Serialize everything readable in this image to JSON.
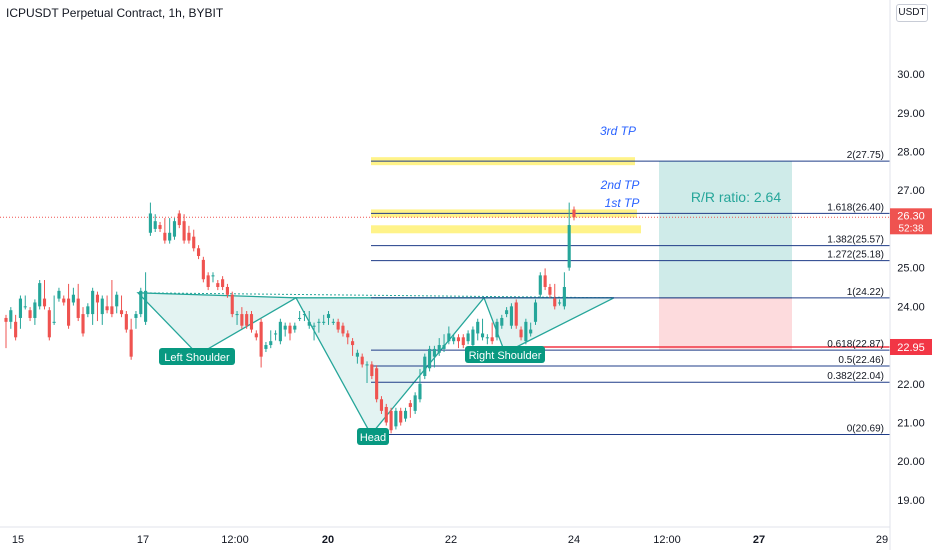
{
  "header": {
    "title": "ICPUSDT Perpetual Contract, 1h, BYBIT",
    "currency": "USDT"
  },
  "chart_data": {
    "type": "candlestick",
    "symbol": "ICPUSDT",
    "timeframe": "1h",
    "exchange": "BYBIT",
    "ylim": [
      18.3,
      31.5
    ],
    "y_ticks": [
      19,
      20,
      21,
      22,
      23,
      24,
      25,
      26,
      27,
      28,
      29,
      30
    ],
    "y_tick_labels": [
      "19.00",
      "20.00",
      "21.00",
      "22.00",
      "23.00",
      "24.00",
      "25.00",
      "26.00",
      "27.00",
      "28.00",
      "29.00",
      "30.00"
    ],
    "xlim": [
      0,
      932
    ],
    "x_ticks": [
      {
        "label": "15",
        "x": 18,
        "bold": false
      },
      {
        "label": "17",
        "x": 143,
        "bold": false
      },
      {
        "label": "12:00",
        "x": 235,
        "bold": false
      },
      {
        "label": "20",
        "x": 328,
        "bold": true
      },
      {
        "label": "22",
        "x": 451,
        "bold": false
      },
      {
        "label": "24",
        "x": 574,
        "bold": false
      },
      {
        "label": "12:00",
        "x": 667,
        "bold": false
      },
      {
        "label": "27",
        "x": 759,
        "bold": true
      },
      {
        "label": "29",
        "x": 882,
        "bold": false
      }
    ],
    "current_price": {
      "value": 26.3,
      "label": "26.30",
      "countdown": "52:38",
      "color": "#ef5350"
    },
    "stop_price": {
      "value": 22.95,
      "label": "22.95",
      "color": "#f23645"
    },
    "fibonacci": [
      {
        "label": "0(20.69)",
        "value": 20.69
      },
      {
        "label": "0.382(22.04)",
        "value": 22.04
      },
      {
        "label": "0.5(22.46)",
        "value": 22.46
      },
      {
        "label": "0.618(22.87)",
        "value": 22.87
      },
      {
        "label": "1(24.22)",
        "value": 24.22
      },
      {
        "label": "1.272(25.18)",
        "value": 25.18
      },
      {
        "label": "1.382(25.57)",
        "value": 25.57
      },
      {
        "label": "1.618(26.40)",
        "value": 26.4
      },
      {
        "label": "2(27.75)",
        "value": 27.75
      }
    ],
    "targets": [
      {
        "label": "1st TP",
        "value": 25.99
      },
      {
        "label": "2nd TP",
        "value": 26.4
      },
      {
        "label": "3rd TP",
        "value": 27.75
      }
    ],
    "position": {
      "entry": 24.22,
      "target": 27.75,
      "stop": 22.87,
      "rr_label": "R/R ratio: 2.64"
    },
    "pattern_labels": {
      "left_shoulder": "Left Shoulder",
      "head": "Head",
      "right_shoulder": "Right Shoulder"
    },
    "neckline_value": 24.22,
    "candles": [
      [
        23.7,
        23.6,
        23.0
      ],
      [
        23.6,
        23.9,
        23.5
      ],
      [
        23.6,
        23.2,
        23.7
      ],
      [
        23.7,
        24.2,
        23.5
      ],
      [
        24.0,
        24.0,
        24.2
      ],
      [
        23.9,
        23.7,
        23.9
      ],
      [
        23.7,
        24.1,
        23.6
      ],
      [
        24.0,
        24.6,
        24.1
      ],
      [
        24.2,
        24.0,
        24.6
      ],
      [
        23.9,
        23.2,
        23.7
      ],
      [
        23.6,
        23.6,
        24.2
      ],
      [
        24.2,
        24.4,
        24.2
      ],
      [
        24.2,
        24.1,
        24.2
      ],
      [
        24.2,
        23.5,
        24.5
      ],
      [
        24.1,
        24.3,
        24.4
      ],
      [
        24.2,
        23.7,
        24.5
      ],
      [
        23.8,
        23.3,
        23.9
      ],
      [
        23.8,
        24.0,
        23.9
      ],
      [
        23.8,
        24.4,
        23.6
      ],
      [
        24.3,
        24.1,
        23.7
      ],
      [
        23.8,
        24.2,
        23.6
      ],
      [
        24.0,
        23.9,
        24.2
      ],
      [
        24.0,
        23.8,
        24.6
      ],
      [
        24.0,
        24.3,
        23.9
      ],
      [
        23.9,
        23.8,
        24.2
      ],
      [
        23.8,
        23.4,
        23.6
      ],
      [
        23.4,
        22.7,
        23.6
      ],
      [
        23.7,
        23.8,
        23.5
      ],
      [
        23.8,
        24.4,
        24.0
      ],
      [
        23.6,
        24.4,
        24.8
      ],
      [
        25.9,
        26.4,
        26.6
      ],
      [
        26.0,
        26.2,
        26.3
      ],
      [
        26.1,
        26.0,
        26.1
      ],
      [
        25.9,
        25.7,
        26.2
      ],
      [
        25.7,
        25.9,
        26.2
      ],
      [
        25.8,
        26.2,
        25.9
      ],
      [
        26.4,
        26.1,
        26.1
      ],
      [
        26.2,
        25.7,
        26.3
      ],
      [
        25.9,
        25.7,
        26.0
      ],
      [
        25.8,
        25.5,
        25.9
      ],
      [
        25.5,
        25.3,
        25.5
      ],
      [
        25.2,
        24.7,
        25.2
      ],
      [
        24.8,
        24.5,
        24.6
      ],
      [
        24.8,
        24.8,
        24.7
      ],
      [
        24.6,
        24.5,
        24.6
      ],
      [
        24.7,
        24.5,
        24.5
      ],
      [
        24.5,
        24.3,
        24.4
      ],
      [
        24.3,
        23.8,
        24.1
      ],
      [
        23.8,
        23.8,
        23.6
      ],
      [
        23.8,
        23.5,
        23.9
      ],
      [
        23.8,
        23.5,
        23.7
      ],
      [
        23.8,
        23.4,
        23.5
      ],
      [
        23.3,
        23.2,
        23.2
      ],
      [
        23.6,
        22.7,
        22.5
      ],
      [
        22.9,
        23.0,
        22.9
      ],
      [
        23.0,
        23.1,
        23.3
      ],
      [
        23.3,
        23.3,
        23.2
      ],
      [
        23.1,
        23.6,
        23.5
      ],
      [
        23.4,
        23.5,
        23.3
      ],
      [
        23.5,
        23.3,
        23.2
      ],
      [
        23.4,
        23.5,
        23.4
      ],
      [
        23.7,
        23.7,
        23.8
      ],
      [
        23.8,
        23.8,
        23.7
      ],
      [
        23.5,
        23.6,
        23.8
      ],
      [
        23.5,
        23.5,
        23.2
      ],
      [
        23.6,
        23.6,
        23.4
      ],
      [
        23.6,
        23.6,
        23.7
      ],
      [
        23.7,
        23.8,
        23.6
      ],
      [
        23.6,
        23.6,
        23.6
      ],
      [
        23.6,
        23.4,
        23.4
      ],
      [
        23.5,
        23.3,
        23.3
      ],
      [
        23.3,
        23.2,
        23.1
      ],
      [
        23.1,
        23.0,
        22.8
      ],
      [
        22.7,
        22.8,
        22.6
      ],
      [
        22.7,
        22.5,
        22.6
      ],
      [
        22.5,
        22.5,
        22.1
      ],
      [
        22.5,
        22.2,
        22.4
      ],
      [
        22.4,
        21.6,
        22.3
      ],
      [
        21.6,
        21.3,
        21.5
      ],
      [
        21.4,
        21.0,
        21.1
      ],
      [
        21.3,
        20.8,
        21.0
      ],
      [
        20.9,
        21.3,
        21.3
      ],
      [
        21.3,
        21.0,
        21.2
      ],
      [
        21.1,
        21.3,
        21.3
      ],
      [
        21.5,
        21.4,
        21.2
      ],
      [
        21.3,
        21.7,
        21.5
      ],
      [
        21.6,
        22.0,
        22.3
      ],
      [
        22.2,
        22.7,
        22.4
      ],
      [
        22.4,
        22.9,
        22.7
      ],
      [
        22.7,
        22.9,
        22.5
      ],
      [
        22.8,
        23.0,
        23.1
      ],
      [
        22.9,
        23.0,
        23.2
      ],
      [
        23.1,
        23.3,
        23.4
      ],
      [
        23.1,
        23.2,
        23.1
      ],
      [
        23.2,
        23.1,
        23.0
      ],
      [
        23.2,
        23.0,
        23.2
      ],
      [
        23.1,
        23.3,
        23.2
      ],
      [
        23.0,
        23.4,
        23.2
      ],
      [
        23.3,
        23.6,
        23.2
      ],
      [
        23.2,
        23.3,
        23.6
      ],
      [
        23.2,
        23.2,
        23.1
      ],
      [
        23.2,
        23.1,
        23.5
      ],
      [
        23.2,
        23.6,
        23.3
      ],
      [
        23.5,
        23.7,
        23.7
      ],
      [
        23.8,
        23.9,
        23.9
      ],
      [
        23.5,
        24.0,
        24.0
      ],
      [
        24.1,
        23.5,
        23.6
      ],
      [
        23.4,
        23.2,
        23.3
      ],
      [
        23.1,
        23.6,
        23.4
      ],
      [
        23.3,
        23.4,
        23.5
      ],
      [
        23.6,
        24.1,
        23.6
      ],
      [
        24.3,
        24.8,
        24.5
      ],
      [
        24.8,
        24.5,
        24.9
      ],
      [
        24.5,
        24.3,
        24.4
      ],
      [
        24.2,
        24.0,
        24.5
      ],
      [
        24.1,
        24.1,
        24.1
      ],
      [
        24.0,
        24.5,
        24.8
      ],
      [
        25.0,
        26.1,
        26.6
      ],
      [
        26.5,
        26.3,
        26.4
      ]
    ]
  }
}
